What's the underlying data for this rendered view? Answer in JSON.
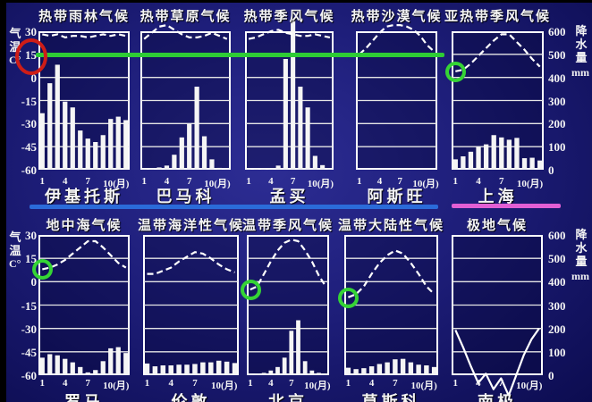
{
  "axes": {
    "temp": {
      "name": "气温",
      "unit": "C°",
      "ticks": [
        "30",
        "15",
        "0",
        "-15",
        "-30",
        "-45",
        "-60"
      ],
      "range_c": [
        -60,
        30
      ]
    },
    "precip": {
      "name": "降水量",
      "unit": "mm",
      "ticks": [
        "600",
        "500",
        "400",
        "300",
        "200",
        "100",
        "0"
      ],
      "range_mm": [
        0,
        600
      ]
    }
  },
  "annotations": {
    "green_line": {
      "level_c": 15,
      "color": "#2ecc35",
      "note": "15°C reference line across tropical charts"
    },
    "red_circle": {
      "around": "15",
      "color": "#cf1d17"
    },
    "green_circles": {
      "marks": "January temperature",
      "color": "#35d435"
    },
    "tropical_underline": {
      "color": "#2b6bd9"
    },
    "shanghai_underline": {
      "color": "#e25fd4"
    }
  },
  "chart_data": [
    {
      "type": "climograph",
      "climate": "热带雨林气候",
      "station": "伊基托斯",
      "x_ticks": [
        "1",
        "4",
        "7",
        "10(月)"
      ],
      "temp_c": [
        28,
        27,
        28,
        26,
        27,
        27,
        26,
        27,
        28,
        27,
        28,
        27
      ],
      "precip_mm": [
        245,
        375,
        455,
        295,
        270,
        170,
        135,
        120,
        150,
        220,
        230,
        215
      ],
      "jan_circle": false,
      "curve_style": "dashed"
    },
    {
      "type": "climograph",
      "climate": "热带草原气候",
      "station": "巴马科",
      "x_ticks": [
        "1",
        "4",
        "7",
        "10(月)"
      ],
      "temp_c": [
        25,
        29,
        33,
        34,
        31,
        28,
        26,
        26,
        27,
        29,
        27,
        25
      ],
      "precip_mm": [
        5,
        5,
        10,
        18,
        65,
        140,
        200,
        360,
        145,
        45,
        8,
        3
      ],
      "jan_circle": false,
      "curve_style": "dashed"
    },
    {
      "type": "climograph",
      "climate": "热带季风气候",
      "station": "孟买",
      "x_ticks": [
        "1",
        "4",
        "7",
        "10(月)"
      ],
      "temp_c": [
        25,
        26,
        28,
        30,
        31,
        29,
        28,
        27,
        27,
        28,
        27,
        26
      ],
      "precip_mm": [
        5,
        3,
        3,
        2,
        18,
        480,
        650,
        360,
        270,
        60,
        20,
        5
      ],
      "jan_circle": false,
      "curve_style": "dashed"
    },
    {
      "type": "climograph",
      "climate": "热带沙漠气候",
      "station": "阿斯旺",
      "x_ticks": [
        "1",
        "4",
        "7",
        "10(月)"
      ],
      "temp_c": [
        15,
        19,
        24,
        29,
        33,
        34,
        34,
        33,
        31,
        27,
        21,
        17
      ],
      "precip_mm": [
        0,
        0,
        0,
        0,
        0,
        0,
        0,
        0,
        0,
        0,
        0,
        0
      ],
      "jan_circle": false,
      "curve_style": "dashed"
    },
    {
      "type": "climograph",
      "climate": "亚热带季风气候",
      "station": "上海",
      "x_ticks": [
        "1",
        "4",
        "7",
        "10(月)"
      ],
      "temp_c": [
        4,
        5,
        9,
        14,
        19,
        24,
        28,
        28,
        23,
        18,
        12,
        7
      ],
      "precip_mm": [
        45,
        58,
        78,
        100,
        110,
        150,
        140,
        130,
        138,
        50,
        52,
        40
      ],
      "jan_circle": true,
      "curve_style": "dashed"
    },
    {
      "type": "climograph",
      "climate": "地中海气候",
      "station": "罗马",
      "x_ticks": [
        "1",
        "4",
        "7",
        "10(月)"
      ],
      "temp_c": [
        8,
        9,
        11,
        14,
        18,
        22,
        26,
        26,
        22,
        17,
        12,
        9
      ],
      "precip_mm": [
        75,
        90,
        85,
        70,
        55,
        35,
        12,
        22,
        60,
        115,
        120,
        95
      ],
      "jan_circle": true,
      "curve_style": "dashed"
    },
    {
      "type": "climograph",
      "climate": "温带海洋性气候",
      "station": "伦敦",
      "x_ticks": [
        "1",
        "4",
        "7",
        "10(月)"
      ],
      "temp_c": [
        5,
        5,
        7,
        9,
        13,
        16,
        19,
        18,
        15,
        11,
        8,
        6
      ],
      "precip_mm": [
        50,
        38,
        42,
        42,
        45,
        45,
        48,
        55,
        55,
        62,
        58,
        52
      ],
      "jan_circle": false,
      "curve_style": "dashed"
    },
    {
      "type": "climograph",
      "climate": "温带季风气候",
      "station": "北京",
      "x_ticks": [
        "1",
        "4",
        "7",
        "10(月)"
      ],
      "temp_c": [
        -5,
        -3,
        5,
        13,
        20,
        25,
        27,
        26,
        20,
        13,
        4,
        -3
      ],
      "precip_mm": [
        5,
        6,
        10,
        20,
        35,
        75,
        190,
        235,
        60,
        20,
        10,
        5
      ],
      "jan_circle": true,
      "curve_style": "dashed"
    },
    {
      "type": "climograph",
      "climate": "温带大陆性气候",
      "station": "莫斯科",
      "x_ticks": [
        "1",
        "4",
        "7",
        "10(月)"
      ],
      "temp_c": [
        -10,
        -8,
        -3,
        5,
        12,
        17,
        20,
        18,
        12,
        5,
        -3,
        -8
      ],
      "precip_mm": [
        32,
        26,
        30,
        38,
        48,
        55,
        68,
        70,
        55,
        45,
        42,
        35
      ],
      "jan_circle": true,
      "curve_style": "dashed"
    },
    {
      "type": "climograph",
      "climate": "极地气候",
      "station": "南极",
      "x_ticks": [
        "1",
        "4",
        "7",
        "10(月)"
      ],
      "temp_c": [
        -31,
        -42,
        -54,
        -65,
        -59,
        -69,
        -62,
        -73,
        -60,
        -47,
        -37,
        -30
      ],
      "precip_mm": [
        0,
        0,
        0,
        0,
        0,
        0,
        0,
        8,
        0,
        0,
        0,
        0
      ],
      "jan_circle": false,
      "curve_style": "solid"
    }
  ]
}
